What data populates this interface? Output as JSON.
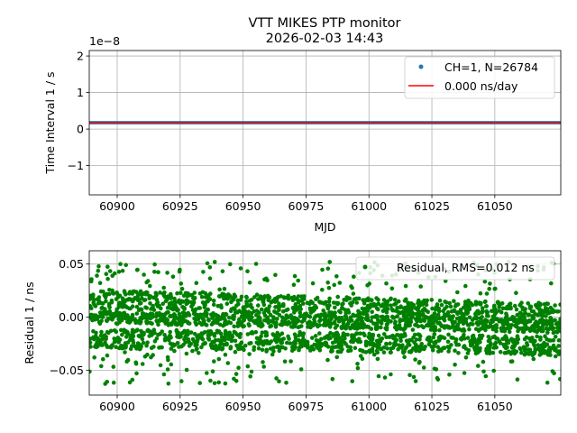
{
  "chart_data": [
    {
      "type": "scatter",
      "title": "VTT MIKES PTP monitor",
      "subtitle": "2026-02-03 14:43",
      "xlabel": "MJD",
      "ylabel": "Time Interval 1 / s",
      "y_offset_label": "1e−8",
      "xlim": [
        60888.9,
        61076.2
      ],
      "ylim": [
        -1.8,
        2.15
      ],
      "y_scale": 1e-08,
      "xticks": [
        60900,
        60925,
        60950,
        60975,
        61000,
        61025,
        61050
      ],
      "xtick_labels": [
        "60900",
        "60925",
        "60950",
        "60975",
        "61000",
        "61025",
        "61050"
      ],
      "yticks": [
        -1,
        0,
        1,
        2
      ],
      "ytick_labels": [
        "−1",
        "0",
        "1",
        "2"
      ],
      "grid": true,
      "legend_position": "top-right",
      "series": [
        {
          "name": "CH=1, N=26784",
          "kind": "points",
          "color": "#1f77b4",
          "y_band": [
            0.13,
            0.22
          ]
        },
        {
          "name": "0.000 ns/day",
          "kind": "line",
          "color": "#ff0000",
          "y": 0.175
        }
      ]
    },
    {
      "type": "scatter",
      "xlabel": "",
      "ylabel": "Residual 1 / ns",
      "xlim": [
        60888.9,
        61076.2
      ],
      "ylim": [
        -0.0735,
        0.0625
      ],
      "xticks": [
        60900,
        60925,
        60950,
        60975,
        61000,
        61025,
        61050
      ],
      "xtick_labels": [
        "60900",
        "60925",
        "60950",
        "60975",
        "61000",
        "61025",
        "61050"
      ],
      "yticks": [
        -0.05,
        0.0,
        0.05
      ],
      "ytick_labels": [
        "−0.05",
        "0.00",
        "0.05"
      ],
      "grid": true,
      "legend_position": "top-right",
      "series": [
        {
          "name": "Residual, RMS=0.012 ns",
          "color": "#008000",
          "bands": [
            {
              "start": 0.017,
              "end": 0.004,
              "half_width": 0.009
            },
            {
              "start": 0.0,
              "end": -0.009,
              "half_width": 0.006
            },
            {
              "start": -0.02,
              "end": -0.027,
              "half_width": 0.009
            }
          ],
          "outlier_range": [
            -0.066,
            0.055
          ]
        }
      ]
    }
  ]
}
